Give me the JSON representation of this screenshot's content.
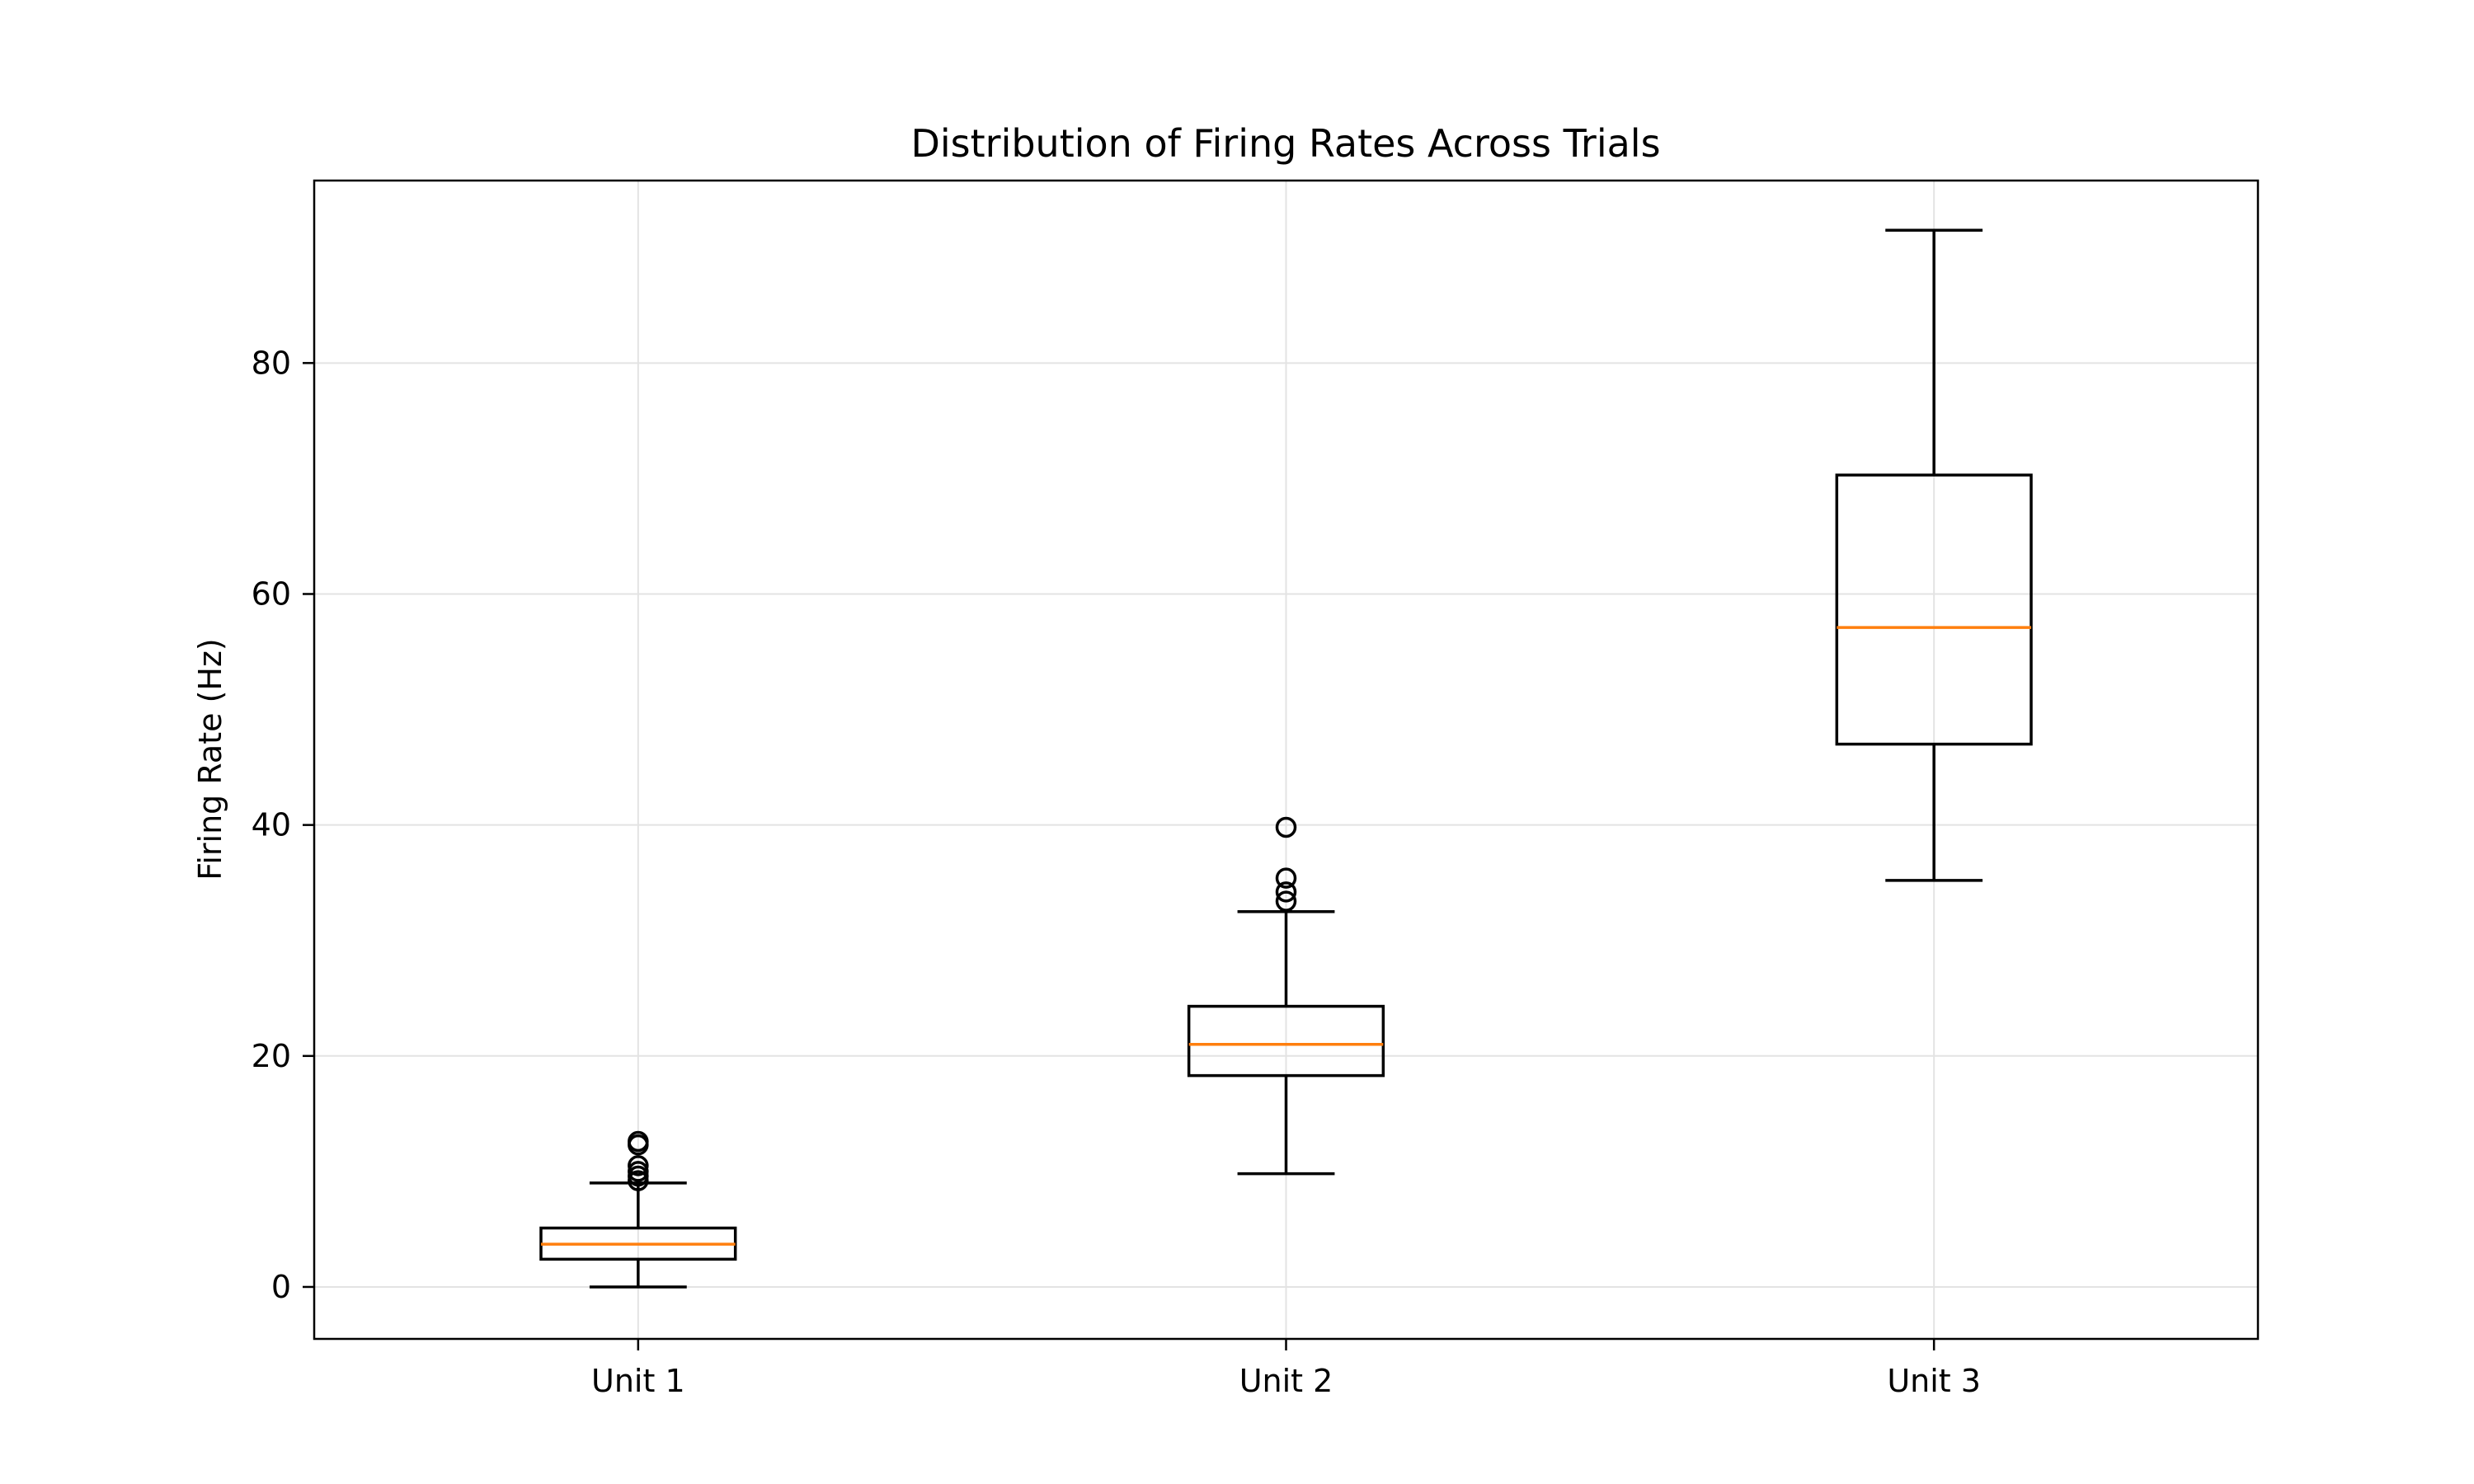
{
  "chart_data": {
    "type": "box",
    "title": "Distribution of Firing Rates Across Trials",
    "xlabel": "",
    "ylabel": "Firing Rate (Hz)",
    "categories": [
      "Unit 1",
      "Unit 2",
      "Unit 3"
    ],
    "ylim": [
      -4.5,
      95.8
    ],
    "yticks": [
      0,
      20,
      40,
      60,
      80
    ],
    "grid": true,
    "boxes": [
      {
        "category": "Unit 1",
        "whisker_low": 0.0,
        "q1": 2.4,
        "median": 3.7,
        "q3": 5.1,
        "whisker_high": 9.0,
        "fliers": [
          9.2,
          9.6,
          10.0,
          10.5,
          12.3,
          12.6
        ]
      },
      {
        "category": "Unit 2",
        "whisker_low": 9.8,
        "q1": 18.3,
        "median": 21.0,
        "q3": 24.3,
        "whisker_high": 32.5,
        "fliers": [
          33.4,
          34.2,
          35.4,
          39.8
        ]
      },
      {
        "category": "Unit 3",
        "whisker_low": 35.2,
        "q1": 47.0,
        "median": 57.1,
        "q3": 70.3,
        "whisker_high": 91.5,
        "fliers": []
      }
    ],
    "colors": {
      "box": "#000000",
      "median": "#ff7f0e",
      "grid": "#e3e3e3"
    }
  }
}
